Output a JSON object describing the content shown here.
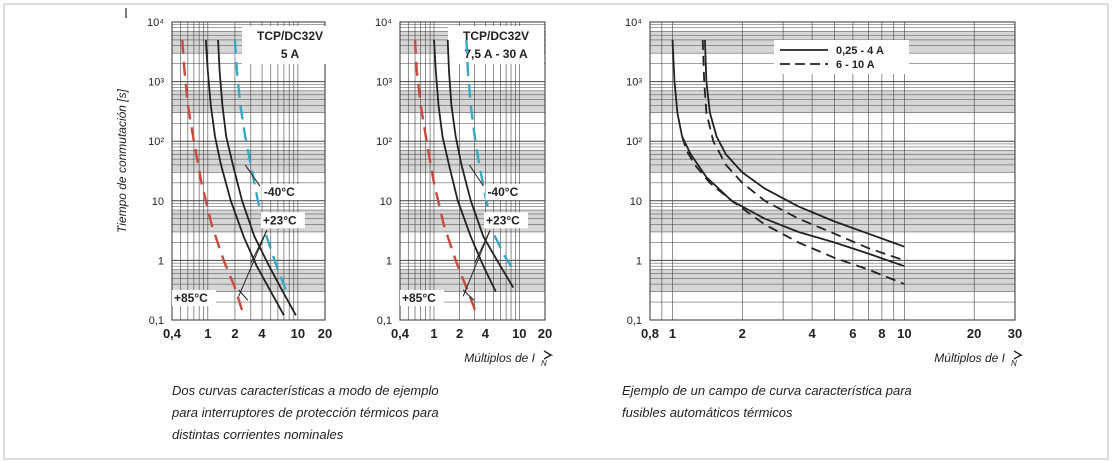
{
  "colors": {
    "red": "#c84b3c",
    "cyan": "#3aa7c4",
    "curve": "#222222",
    "grid": "#444444",
    "band": "#d6d6d6"
  },
  "chart_data": [
    {
      "type": "line",
      "title": "TCP/DC32V",
      "subtitle": "5 A",
      "ylabel": "Tiempo de conmutación [s]",
      "xlabel": "",
      "xscale": "log",
      "yscale": "log",
      "xlim": [
        0.4,
        20
      ],
      "ylim": [
        0.1,
        10000
      ],
      "xticks": [
        "0,4",
        "1",
        "2",
        "4",
        "10",
        "20"
      ],
      "yticks": [
        "10⁴",
        "10³",
        "10²",
        "10",
        "1",
        "0,1"
      ],
      "grid": true,
      "series": [
        {
          "name": "+85°C",
          "style": "red-dashed",
          "x": [
            0.52,
            0.55,
            0.6,
            0.7,
            0.85,
            1.1,
            1.5,
            2.0,
            2.5
          ],
          "y": [
            5000,
            1500,
            400,
            100,
            20,
            4,
            1,
            0.35,
            0.12
          ]
        },
        {
          "name": "+23°C",
          "style": "solid",
          "x": [
            0.95,
            1.0,
            1.08,
            1.2,
            1.4,
            1.8,
            2.5,
            3.5,
            5,
            7
          ],
          "y": [
            5000,
            1500,
            400,
            120,
            40,
            10,
            2.5,
            0.8,
            0.3,
            0.12
          ]
        },
        {
          "name": "+23°C",
          "style": "solid",
          "x": [
            1.3,
            1.35,
            1.45,
            1.6,
            1.9,
            2.4,
            3.3,
            4.8,
            6.8,
            9.5
          ],
          "y": [
            5000,
            1500,
            400,
            120,
            40,
            10,
            2.5,
            0.8,
            0.3,
            0.12
          ]
        },
        {
          "name": "-40°C",
          "style": "cyan-dashed",
          "x": [
            2.0,
            2.1,
            2.3,
            2.6,
            3.0,
            3.6,
            4.5,
            5.8,
            7.5
          ],
          "y": [
            5000,
            1500,
            400,
            120,
            40,
            10,
            2.5,
            0.8,
            0.3
          ]
        }
      ],
      "annotations": [
        "-40°C",
        "+23°C",
        "+85°C"
      ]
    },
    {
      "type": "line",
      "title": "TCP/DC32V",
      "subtitle": "7,5 A - 30 A",
      "ylabel": "",
      "xlabel": "Múltiplos de I",
      "xlabel_sub": "N",
      "xscale": "log",
      "yscale": "log",
      "xlim": [
        0.4,
        20
      ],
      "ylim": [
        0.1,
        10000
      ],
      "xticks": [
        "0,4",
        "1",
        "2",
        "4",
        "10",
        "20"
      ],
      "yticks": [
        "10⁴",
        "10³",
        "10²",
        "10",
        "1",
        "0,1"
      ],
      "grid": true,
      "series": [
        {
          "name": "+85°C",
          "style": "red-dashed",
          "x": [
            0.6,
            0.63,
            0.7,
            0.82,
            1.0,
            1.3,
            1.8,
            2.4,
            3.2
          ],
          "y": [
            5000,
            1500,
            400,
            100,
            20,
            4,
            1,
            0.35,
            0.12
          ]
        },
        {
          "name": "+23°C",
          "style": "solid",
          "x": [
            1.0,
            1.05,
            1.13,
            1.26,
            1.5,
            1.9,
            2.7,
            3.8,
            5.3
          ],
          "y": [
            5000,
            1500,
            400,
            120,
            40,
            10,
            2.5,
            0.8,
            0.3
          ]
        },
        {
          "name": "+23°C",
          "style": "solid",
          "x": [
            1.45,
            1.5,
            1.6,
            1.8,
            2.1,
            2.7,
            3.8,
            5.5,
            8.5
          ],
          "y": [
            5000,
            1500,
            400,
            120,
            40,
            10,
            2.5,
            1.0,
            0.35
          ]
        },
        {
          "name": "-40°C",
          "style": "cyan-dashed",
          "x": [
            2.4,
            2.5,
            2.7,
            3.0,
            3.4,
            4.1,
            5.2,
            6.7,
            8.5
          ],
          "y": [
            5000,
            1500,
            400,
            120,
            40,
            10,
            2.5,
            1.2,
            0.7
          ]
        }
      ],
      "annotations": [
        "-40°C",
        "+23°C",
        "+85°C"
      ]
    },
    {
      "type": "line",
      "title": "",
      "ylabel": "",
      "xlabel": "Múltiplos de I",
      "xlabel_sub": "N",
      "xscale": "log",
      "yscale": "log",
      "xlim": [
        0.8,
        30
      ],
      "ylim": [
        0.1,
        10000
      ],
      "xticks": [
        "0,8",
        "1",
        "2",
        "4",
        "6",
        "8",
        "10",
        "20",
        "30"
      ],
      "yticks": [
        "10⁴",
        "10³",
        "10²",
        "10",
        "1",
        "0,1"
      ],
      "grid": true,
      "legend": {
        "position": "top-center",
        "entries": [
          {
            "label": "0,25 - 4 A",
            "style": "solid"
          },
          {
            "label": "6 - 10 A",
            "style": "dashed"
          }
        ]
      },
      "series": [
        {
          "name": "0,25 - 4 A",
          "style": "solid",
          "x": [
            1.0,
            1.02,
            1.05,
            1.1,
            1.2,
            1.4,
            1.8,
            2.5,
            3.5,
            5,
            7,
            10
          ],
          "y": [
            5000,
            1000,
            300,
            120,
            60,
            25,
            10,
            5,
            3,
            2,
            1.3,
            0.8
          ]
        },
        {
          "name": "0,25 - 4 A",
          "style": "solid",
          "x": [
            1.38,
            1.4,
            1.45,
            1.55,
            1.7,
            2.0,
            2.5,
            3.5,
            5,
            7,
            10
          ],
          "y": [
            5000,
            1000,
            300,
            120,
            60,
            30,
            16,
            8,
            4.5,
            2.8,
            1.7
          ]
        },
        {
          "name": "6 - 10 A",
          "style": "dashed",
          "x": [
            1.1,
            1.15,
            1.25,
            1.45,
            1.8,
            2.5,
            3.5,
            5,
            7,
            10
          ],
          "y": [
            120,
            70,
            40,
            20,
            10,
            4,
            2,
            1.1,
            0.7,
            0.4
          ]
        },
        {
          "name": "6 - 10 A",
          "style": "dashed",
          "x": [
            1.35,
            1.37,
            1.4,
            1.5,
            1.7,
            2.0,
            2.5,
            3.5,
            5,
            7,
            10
          ],
          "y": [
            5000,
            1000,
            300,
            100,
            40,
            20,
            10,
            5,
            2.8,
            1.6,
            1.0
          ]
        }
      ]
    }
  ],
  "captions": {
    "left": [
      "Dos curvas características a modo de ejemplo",
      "para interruptores de protección térmicos para",
      "distintas corrientes nominales"
    ],
    "right": [
      "Ejemplo de un campo de curva característica para",
      "fusibles automáticos térmicos"
    ]
  }
}
